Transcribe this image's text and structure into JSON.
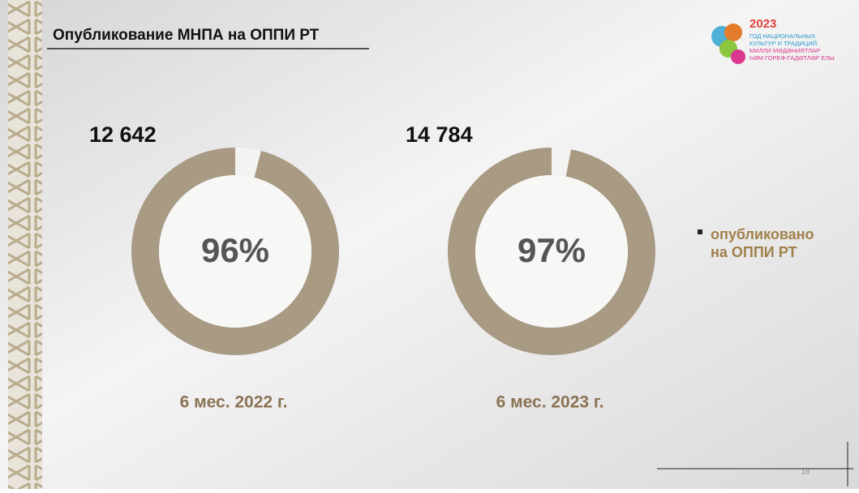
{
  "title": "Опубликование МНПА на ОППИ РТ",
  "logo": {
    "year": "2023",
    "lines": [
      "ГОД НАЦИОНАЛЬНЫХ",
      "КУЛЬТУР И ТРАДИЦИЙ",
      "МИЛЛИ МӘДӘНИЯТЛАР",
      "ҺӘМ ГОРЕФ-ГАДӘТЛӘР ЕЛЫ"
    ]
  },
  "chart_data": [
    {
      "type": "donut",
      "annotation": "12 642",
      "label": "6 мес. 2022 г.",
      "categories": [
        "опубликовано на ОППИ РТ",
        null
      ],
      "values": [
        96,
        4
      ],
      "value_labels": [
        "96%",
        null
      ],
      "colors": [
        "#a89a83",
        "#f3f3f1"
      ]
    },
    {
      "type": "donut",
      "annotation": "14 784",
      "label": "6 мес. 2023 г.",
      "categories": [
        "опубликовано на ОППИ РТ",
        null
      ],
      "values": [
        97,
        3
      ],
      "value_labels": [
        "97%",
        null
      ],
      "colors": [
        "#a89a83",
        "#f3f3f1"
      ]
    }
  ],
  "page_number": "18"
}
